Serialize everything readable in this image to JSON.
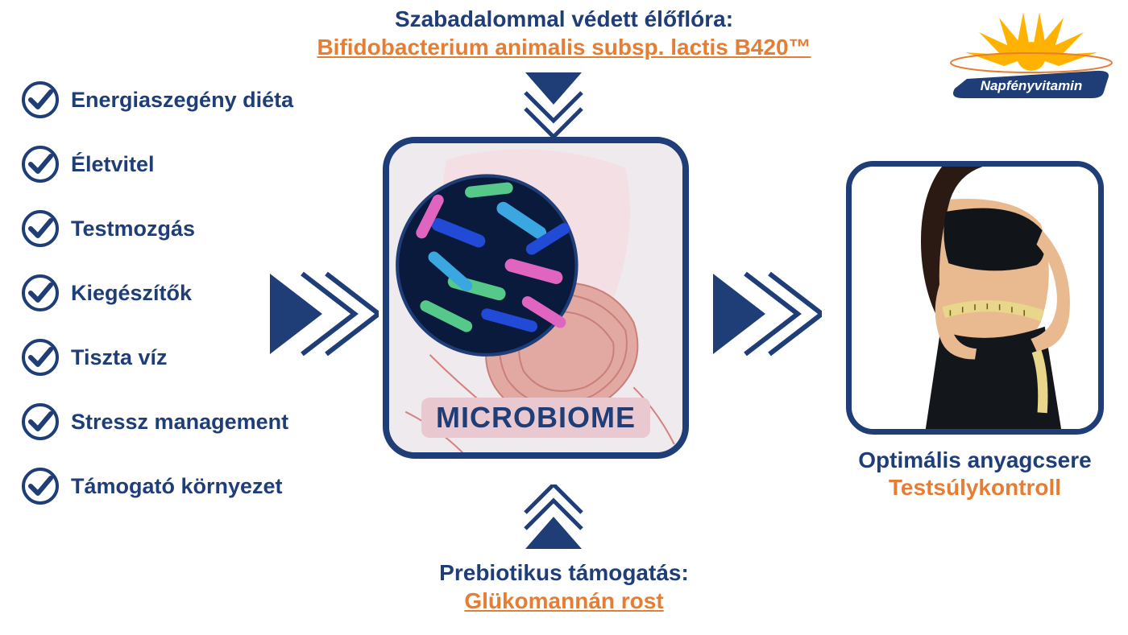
{
  "colors": {
    "primary": "#1f3e78",
    "accent": "#e77c33",
    "label_bg": "#e9c9cf",
    "white": "#ffffff",
    "yellow": "#ffb300"
  },
  "top": {
    "line1": "Szabadalommal védett élőflóra:",
    "line2": "Bifidobacterium animalis subsp. lactis B420™",
    "line1_color": "#1f3e78",
    "line2_color": "#e77c33",
    "fontsize": 28
  },
  "logo": {
    "text": "Napfényvitamin",
    "ribbon_fill": "#1f3e78",
    "ribbon_text_color": "#ffffff",
    "sun_fill": "#ffb300",
    "glow_stroke": "#e77c33"
  },
  "checklist": {
    "items": [
      "Energiaszegény diéta",
      "Életvitel",
      "Testmozgás",
      "Kiegészítők",
      "Tiszta víz",
      "Stressz management",
      "Támogató környezet"
    ],
    "text_color": "#1f3e78",
    "icon_stroke": "#1f3e78",
    "fontsize": 27
  },
  "center": {
    "label": "MICROBIOME",
    "label_color": "#1f3e78",
    "label_bg": "#e9c9cf",
    "label_fontsize": 36,
    "border_color": "#1f3e78",
    "inset_bacteria_colors": [
      "#214bd6",
      "#3aa7e0",
      "#55c88a",
      "#e065c1"
    ]
  },
  "bottom": {
    "line1": "Prebiotikus támogatás:",
    "line2": "Glükomannán rost",
    "line1_color": "#1f3e78",
    "line2_color": "#e77c33",
    "fontsize": 28
  },
  "result": {
    "line1": "Optimális anyagcsere",
    "line2": "Testsúlykontroll",
    "line1_color": "#1f3e78",
    "line2_color": "#e77c33",
    "border_color": "#1f3e78",
    "fontsize": 28
  },
  "arrows": {
    "fill": "#1f3e78",
    "stroke": "#1f3e78"
  }
}
